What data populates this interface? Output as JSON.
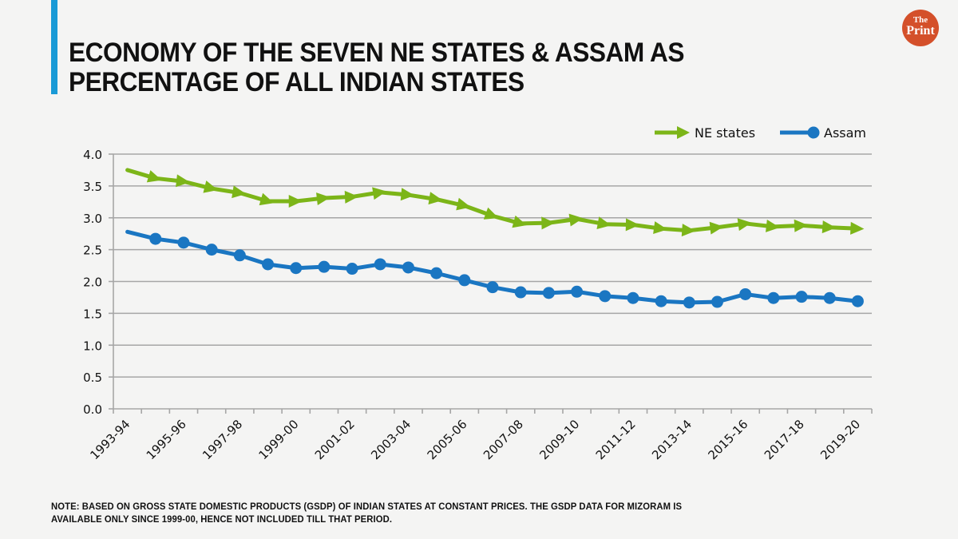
{
  "header": {
    "title_line1": "ECONOMY OF THE SEVEN NE STATES & ASSAM AS",
    "title_line2": "PERCENTAGE OF ALL INDIAN STATES",
    "accent_color": "#1a9ad6"
  },
  "logo": {
    "top": "The",
    "bottom": "Print",
    "color": "#d4502a"
  },
  "note": {
    "line1": "NOTE: BASED ON GROSS STATE DOMESTIC PRODUCTS (GSDP) OF INDIAN STATES AT CONSTANT PRICES. THE GSDP DATA FOR MIZORAM IS",
    "line2": "AVAILABLE ONLY SINCE 1999-00, HENCE NOT INCLUDED TILL THAT PERIOD."
  },
  "chart_data": {
    "type": "line",
    "title": "Economy of the seven NE states & Assam as percentage of all Indian states",
    "xlabel": "",
    "ylabel": "",
    "ylim": [
      0,
      4.0
    ],
    "yticks": [
      "0.0",
      "0.5",
      "1.0",
      "1.5",
      "2.0",
      "2.5",
      "3.0",
      "3.5",
      "4.0"
    ],
    "grid": true,
    "legend_position": "top-right",
    "categories": [
      "1993-94",
      "1994-95",
      "1995-96",
      "1996-97",
      "1997-98",
      "1998-99",
      "1999-00",
      "2000-01",
      "2001-02",
      "2002-03",
      "2003-04",
      "2004-05",
      "2005-06",
      "2006-07",
      "2007-08",
      "2008-09",
      "2009-10",
      "2010-11",
      "2011-12",
      "2012-13",
      "2013-14",
      "2014-15",
      "2015-16",
      "2016-17",
      "2017-18",
      "2018-19",
      "2019-20"
    ],
    "xtick_labels_shown": [
      "1993-94",
      "1995-96",
      "1997-98",
      "1999-00",
      "2001-02",
      "2003-04",
      "2005-06",
      "2007-08",
      "2009-10",
      "2011-12",
      "2013-14",
      "2015-16",
      "2017-18",
      "2019-20"
    ],
    "series": [
      {
        "name": "NE states",
        "color": "#7cb518",
        "marker": "arrow",
        "values": [
          3.75,
          3.62,
          3.57,
          3.46,
          3.39,
          3.26,
          3.26,
          3.31,
          3.33,
          3.4,
          3.36,
          3.29,
          3.19,
          3.03,
          2.91,
          2.92,
          2.98,
          2.9,
          2.89,
          2.83,
          2.8,
          2.85,
          2.91,
          2.86,
          2.88,
          2.85,
          2.83
        ]
      },
      {
        "name": "Assam",
        "color": "#1a76c2",
        "marker": "circle",
        "values": [
          2.78,
          2.67,
          2.61,
          2.5,
          2.41,
          2.27,
          2.21,
          2.23,
          2.2,
          2.27,
          2.22,
          2.13,
          2.02,
          1.91,
          1.83,
          1.82,
          1.84,
          1.77,
          1.74,
          1.69,
          1.67,
          1.68,
          1.8,
          1.74,
          1.76,
          1.74,
          1.69
        ]
      }
    ]
  }
}
